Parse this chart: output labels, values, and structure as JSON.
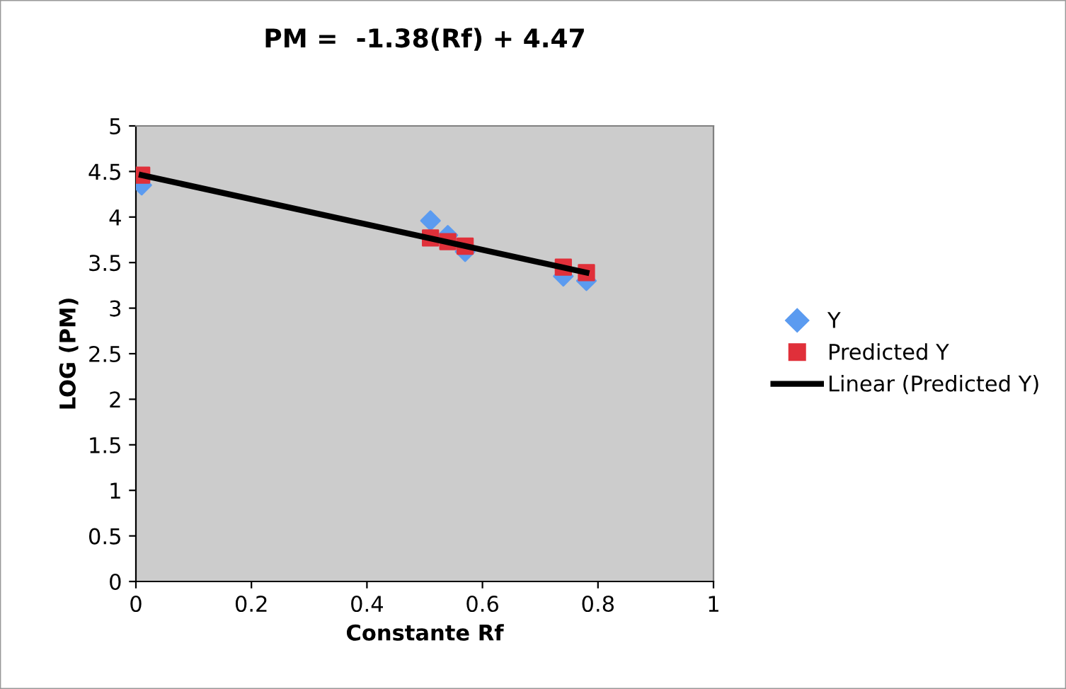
{
  "chart_data": {
    "type": "scatter",
    "title": "PM =  -1.38(Rf) + 4.47",
    "xlabel": "Constante Rf",
    "ylabel": "LOG (PM)",
    "xlim": [
      0,
      1
    ],
    "xticks": [
      0,
      0.2,
      0.4,
      0.6,
      0.8,
      1
    ],
    "ylim": [
      0,
      5
    ],
    "yticks": [
      0,
      0.5,
      1,
      1.5,
      2,
      2.5,
      3,
      3.5,
      4,
      4.5,
      5
    ],
    "grid": false,
    "legend": "right",
    "series": [
      {
        "name": "Y",
        "marker": "diamond",
        "color": "#5b9bf0",
        "x": [
          0.01,
          0.51,
          0.54,
          0.57,
          0.74,
          0.78
        ],
        "values": [
          4.35,
          3.96,
          3.8,
          3.62,
          3.35,
          3.3
        ]
      },
      {
        "name": "Predicted Y",
        "marker": "square",
        "color": "#e0303a",
        "x": [
          0.01,
          0.51,
          0.54,
          0.57,
          0.74,
          0.78
        ],
        "values": [
          4.46,
          3.77,
          3.73,
          3.68,
          3.45,
          3.39
        ]
      },
      {
        "name": "Linear (Predicted Y)",
        "type": "line",
        "marker": "none",
        "line_style": "solid",
        "color": "#000000",
        "x": [
          0.01,
          0.78
        ],
        "values": [
          4.46,
          3.39
        ]
      }
    ]
  }
}
